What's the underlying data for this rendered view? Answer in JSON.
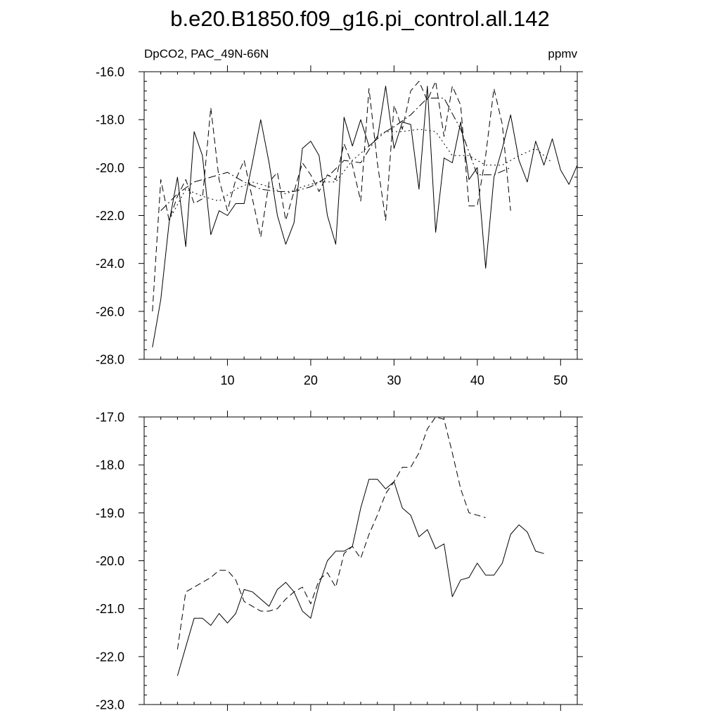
{
  "title": "b.e20.B1850.f09_g16.pi_control.all.142",
  "subtitle_left": "DpCO2, PAC_49N-66N",
  "subtitle_right": "ppmv",
  "chart_data": [
    {
      "type": "line",
      "xlim": [
        0,
        52
      ],
      "ylim": [
        -28,
        -16
      ],
      "x_ticks": [
        10,
        20,
        30,
        40,
        50
      ],
      "y_ticks": [
        -28,
        -26,
        -24,
        -22,
        -20,
        -18,
        -16
      ],
      "y_tick_labels": [
        "-28.0",
        "-26.0",
        "-24.0",
        "-22.0",
        "-20.0",
        "-18.0",
        "-16.0"
      ],
      "series": [
        {
          "style": "solid",
          "x": [
            1,
            2,
            3,
            4,
            5,
            6,
            7,
            8,
            9,
            10,
            11,
            12,
            13,
            14,
            15,
            16,
            17,
            18,
            19,
            20,
            21,
            22,
            23,
            24,
            25,
            26,
            27,
            28,
            29,
            30,
            31,
            32,
            33,
            34,
            35,
            36,
            37,
            38,
            39,
            40,
            41,
            42,
            43,
            44,
            45,
            46,
            47,
            48,
            49,
            50,
            51,
            52
          ],
          "values": [
            -27.5,
            -25.5,
            -22.3,
            -20.4,
            -23.3,
            -18.5,
            -19.5,
            -22.8,
            -21.8,
            -22.0,
            -21.5,
            -21.5,
            -19.8,
            -18.0,
            -19.8,
            -22.0,
            -23.2,
            -22.3,
            -19.2,
            -18.9,
            -19.5,
            -22.0,
            -23.2,
            -17.9,
            -19.1,
            -18.0,
            -19.1,
            -18.8,
            -16.6,
            -19.2,
            -18.1,
            -18.2,
            -20.9,
            -16.6,
            -22.7,
            -19.6,
            -19.8,
            -18.1,
            -20.5,
            -20.0,
            -24.2,
            -20.4,
            -19.2,
            -17.8,
            -19.7,
            -20.6,
            -18.9,
            -19.9,
            -18.8,
            -20.1,
            -20.7,
            -19.9
          ]
        },
        {
          "style": "dashed",
          "x": [
            1,
            2,
            3,
            4,
            5,
            6,
            7,
            8,
            9,
            10,
            11,
            12,
            13,
            14,
            15,
            16,
            17,
            18,
            19,
            20,
            21,
            22,
            23,
            24,
            25,
            26,
            27,
            28,
            29,
            30,
            31,
            32,
            33,
            34,
            35,
            36,
            37,
            38,
            39,
            40,
            41,
            42,
            43,
            44
          ],
          "values": [
            -26.0,
            -20.5,
            -22.2,
            -21.2,
            -20.5,
            -21.5,
            -21.3,
            -17.5,
            -20.5,
            -21.8,
            -20.5,
            -19.7,
            -21.3,
            -22.9,
            -20.6,
            -20.2,
            -22.2,
            -21.0,
            -19.8,
            -20.3,
            -21.0,
            -20.3,
            -20.5,
            -19.0,
            -19.9,
            -21.4,
            -16.7,
            -19.8,
            -22.2,
            -17.4,
            -18.4,
            -16.8,
            -16.4,
            -17.2,
            -16.4,
            -18.7,
            -16.6,
            -17.4,
            -21.6,
            -21.6,
            -19.5,
            -16.7,
            -18.2,
            -21.8
          ]
        },
        {
          "style": "dash-dot",
          "x": [
            2,
            4,
            6,
            8,
            10,
            12,
            14,
            16,
            18,
            20,
            22,
            24,
            26,
            28,
            30,
            32,
            34,
            36,
            38,
            40,
            42,
            44
          ],
          "values": [
            -21.8,
            -21.1,
            -20.6,
            -20.4,
            -20.2,
            -20.6,
            -20.9,
            -21.0,
            -21.0,
            -20.8,
            -20.4,
            -19.7,
            -19.8,
            -18.7,
            -18.3,
            -17.8,
            -17.1,
            -17.1,
            -18.4,
            -20.3,
            -20.3,
            -20.0
          ]
        },
        {
          "style": "dotted",
          "x": [
            3,
            5,
            7,
            9,
            11,
            13,
            15,
            17,
            19,
            21,
            23,
            25,
            27,
            29,
            31,
            33,
            35,
            37,
            39,
            41,
            43,
            45,
            47,
            49
          ],
          "values": [
            -22.2,
            -20.9,
            -21.2,
            -21.4,
            -20.9,
            -20.6,
            -20.8,
            -21.1,
            -20.8,
            -20.6,
            -20.6,
            -19.7,
            -19.1,
            -18.5,
            -18.5,
            -18.4,
            -18.5,
            -19.5,
            -19.5,
            -19.9,
            -19.9,
            -19.5,
            -19.2,
            -19.8
          ]
        }
      ]
    },
    {
      "type": "line",
      "xlim": [
        0,
        52
      ],
      "ylim": [
        -23,
        -17
      ],
      "x_ticks": [
        10,
        20,
        30,
        40,
        50
      ],
      "y_ticks": [
        -23,
        -22,
        -21,
        -20,
        -19,
        -18,
        -17
      ],
      "y_tick_labels": [
        "-23.0",
        "-22.0",
        "-21.0",
        "-20.0",
        "-19.0",
        "-18.0",
        "-17.0"
      ],
      "series": [
        {
          "style": "solid",
          "x": [
            4,
            5,
            6,
            7,
            8,
            9,
            10,
            11,
            12,
            13,
            14,
            15,
            16,
            17,
            18,
            19,
            20,
            21,
            22,
            23,
            24,
            25,
            26,
            27,
            28,
            29,
            30,
            31,
            32,
            33,
            34,
            35,
            36,
            37,
            38,
            39,
            40,
            41,
            42,
            43,
            44,
            45,
            46,
            47,
            48
          ],
          "values": [
            -22.4,
            -21.8,
            -21.2,
            -21.2,
            -21.35,
            -21.1,
            -21.3,
            -21.1,
            -20.6,
            -20.65,
            -20.8,
            -20.95,
            -20.6,
            -20.45,
            -20.65,
            -21.05,
            -21.2,
            -20.5,
            -20.0,
            -19.8,
            -19.8,
            -19.7,
            -18.9,
            -18.3,
            -18.3,
            -18.5,
            -18.35,
            -18.9,
            -19.05,
            -19.5,
            -19.35,
            -19.75,
            -19.65,
            -20.75,
            -20.4,
            -20.35,
            -20.05,
            -20.3,
            -20.3,
            -20.05,
            -19.45,
            -19.25,
            -19.4,
            -19.8,
            -19.85
          ]
        },
        {
          "style": "dashed",
          "x": [
            4,
            5,
            6,
            7,
            8,
            9,
            10,
            11,
            12,
            13,
            14,
            15,
            16,
            17,
            18,
            19,
            20,
            21,
            22,
            23,
            24,
            25,
            26,
            27,
            28,
            29,
            30,
            31,
            32,
            33,
            34,
            35,
            36,
            37,
            38,
            39,
            40,
            41
          ],
          "values": [
            -21.85,
            -20.65,
            -20.55,
            -20.45,
            -20.35,
            -20.2,
            -20.2,
            -20.4,
            -20.85,
            -20.95,
            -21.05,
            -21.05,
            -21.0,
            -20.8,
            -20.65,
            -20.55,
            -20.9,
            -20.4,
            -20.25,
            -20.55,
            -19.85,
            -19.7,
            -19.95,
            -19.45,
            -19.05,
            -18.6,
            -18.35,
            -18.05,
            -18.05,
            -17.75,
            -17.25,
            -17.0,
            -17.05,
            -17.75,
            -18.5,
            -19.0,
            -19.05,
            -19.1
          ]
        }
      ]
    }
  ]
}
